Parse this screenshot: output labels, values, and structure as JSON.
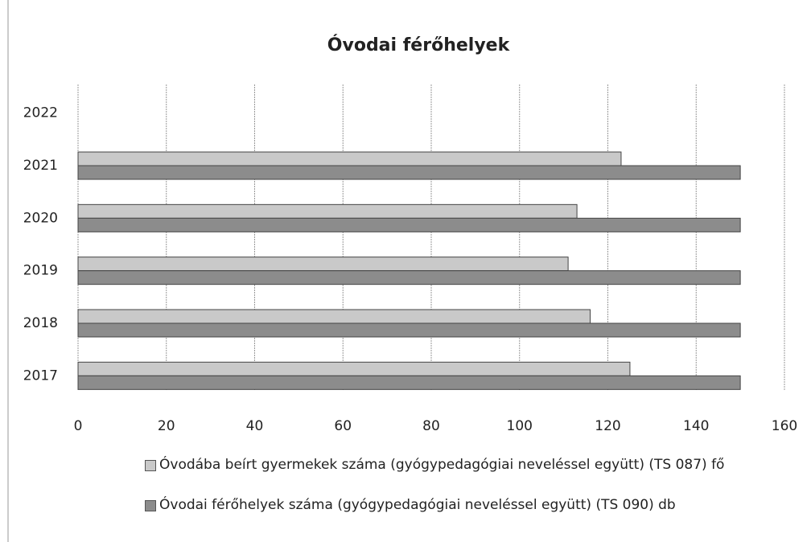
{
  "chart_data": {
    "type": "bar",
    "orientation": "horizontal",
    "title": "Óvodai férőhelyek",
    "categories": [
      "2017",
      "2018",
      "2019",
      "2020",
      "2021",
      "2022"
    ],
    "series": [
      {
        "name": "Óvodába beírt gyermekek száma (gyógypedagógiai neveléssel együtt) (TS 087) fő",
        "color": "#c9c9c9",
        "values": [
          125,
          116,
          111,
          113,
          123,
          null
        ]
      },
      {
        "name": "Óvodai férőhelyek száma (gyógypedagógiai neveléssel együtt) (TS 090) db",
        "color": "#8c8c8c",
        "values": [
          150,
          150,
          150,
          150,
          150,
          null
        ]
      }
    ],
    "xlim": [
      0,
      160
    ],
    "xticks": [
      0,
      20,
      40,
      60,
      80,
      100,
      120,
      140,
      160
    ],
    "grid": true,
    "legend": "bottom"
  }
}
